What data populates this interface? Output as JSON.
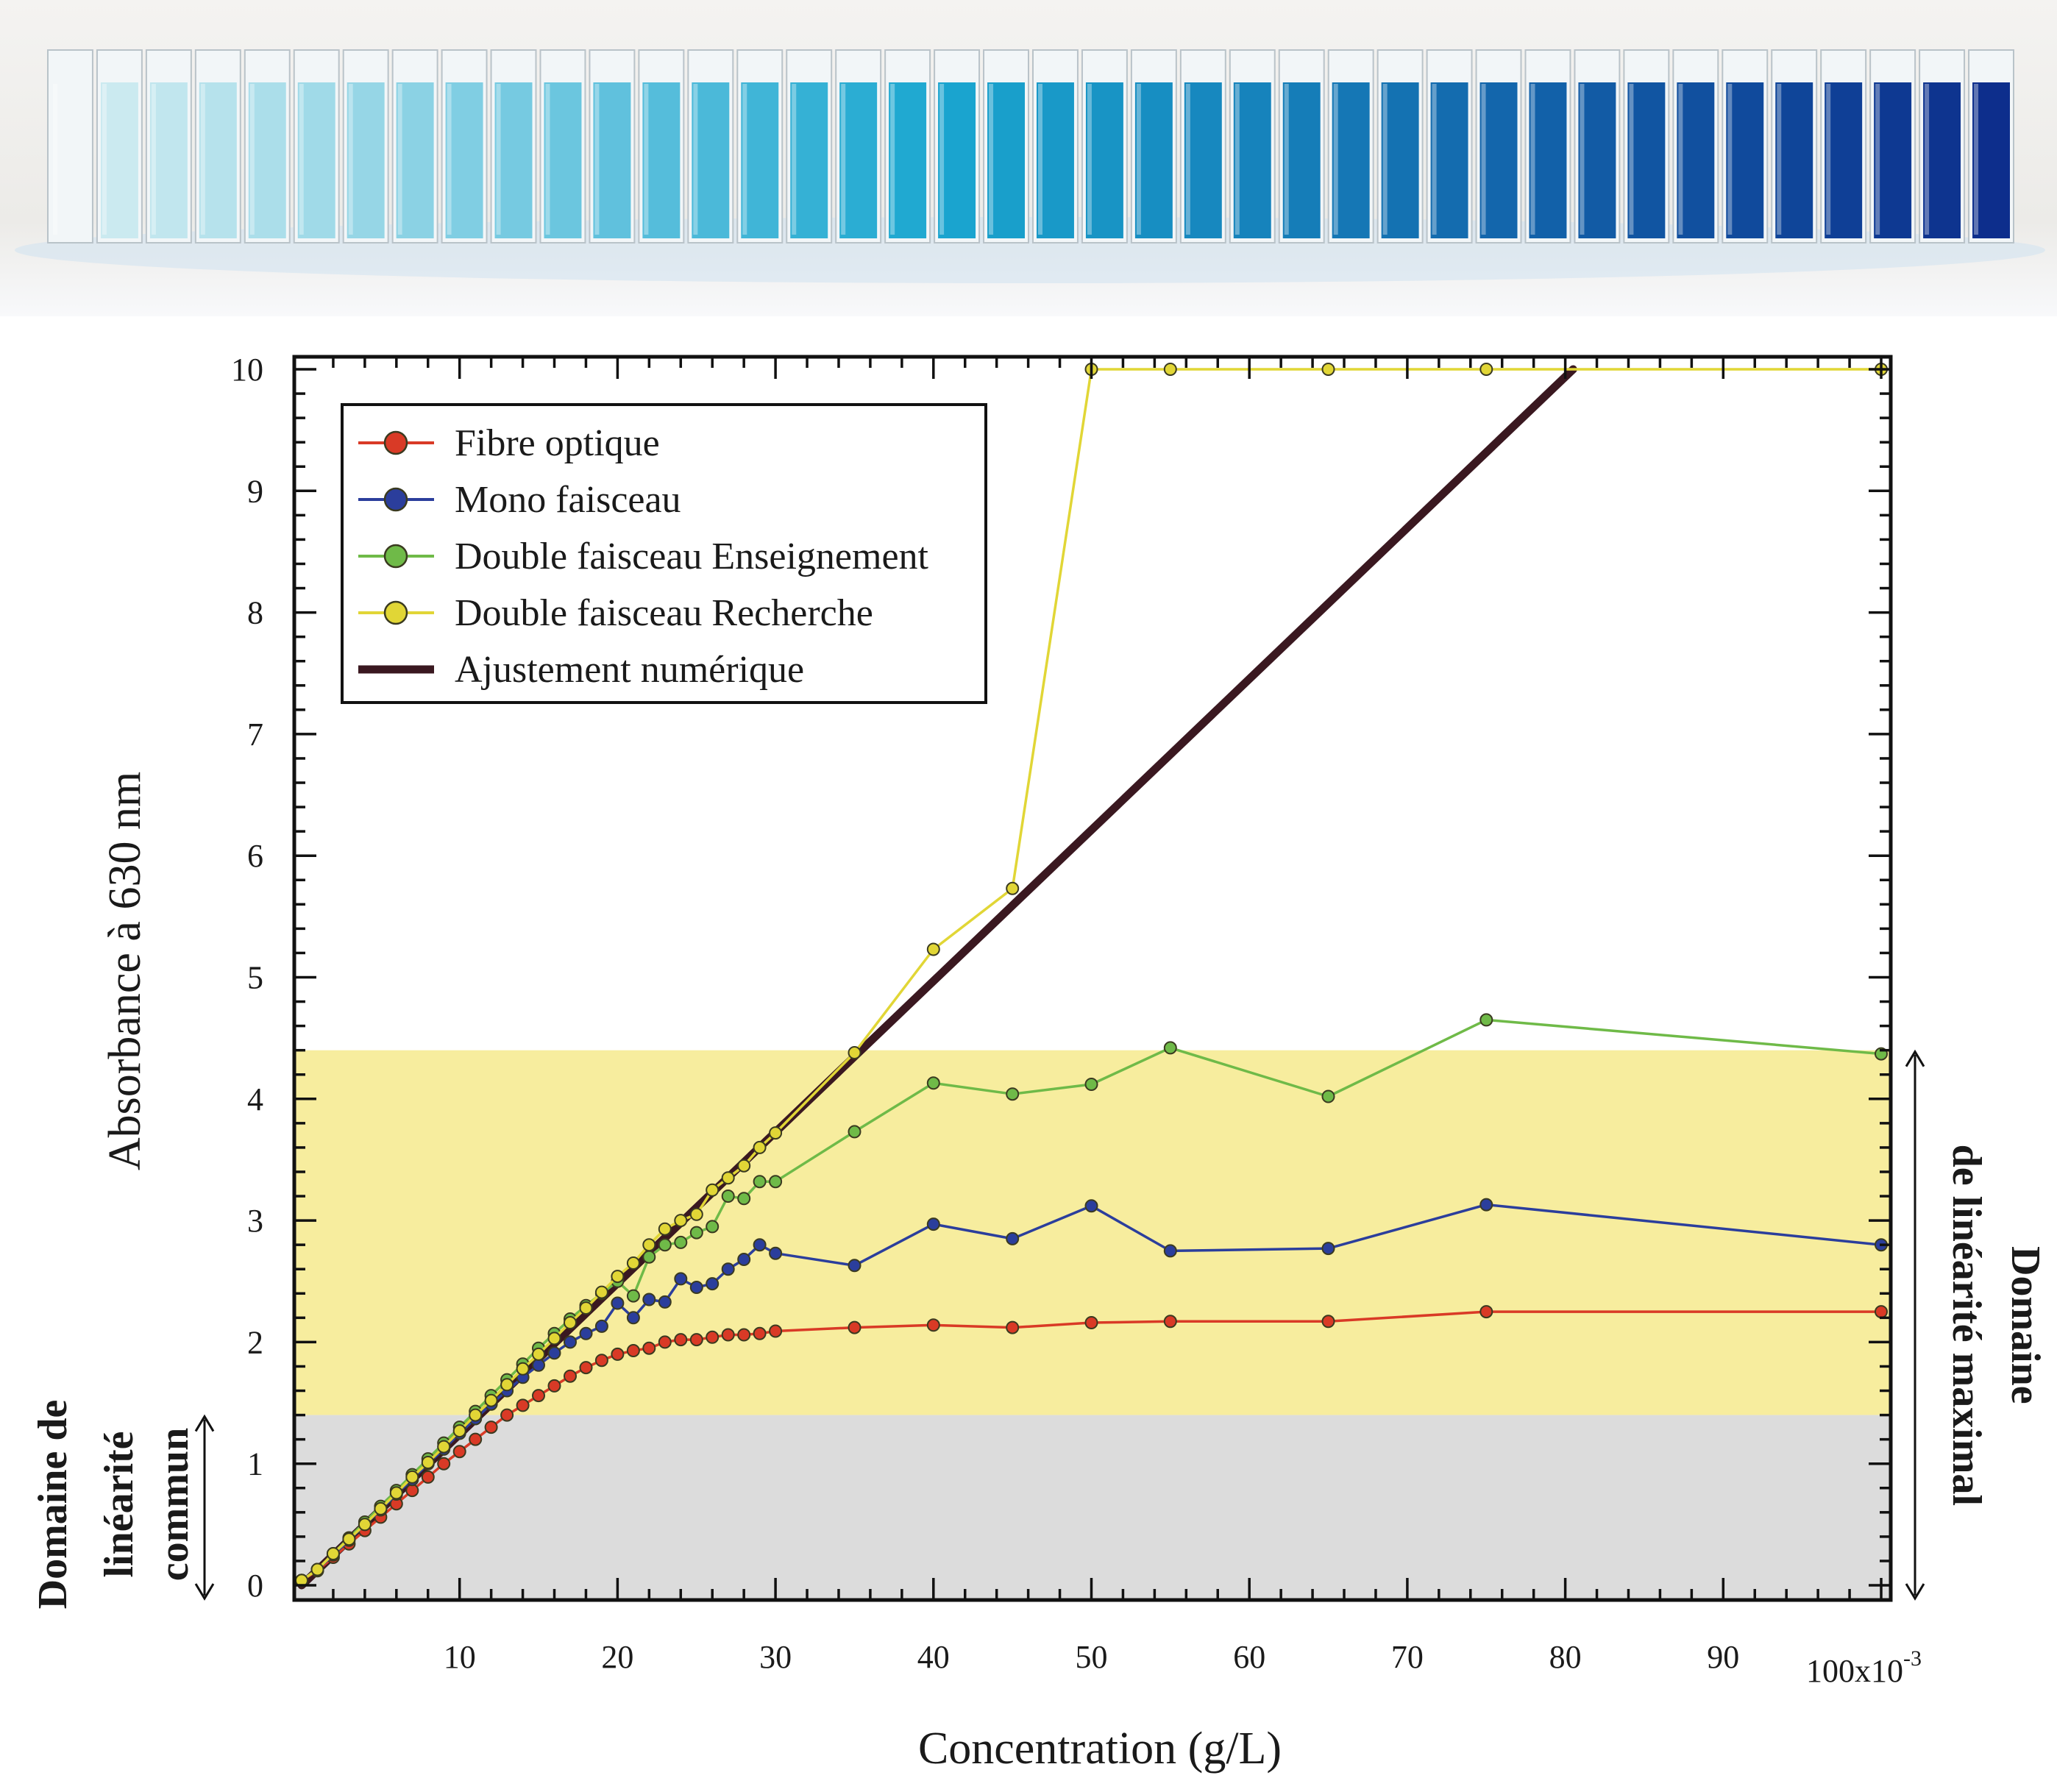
{
  "photo": {
    "cuvette_count": 40,
    "colors": {
      "light": "#d6eef2",
      "mid": "#1aa7d0",
      "dark": "#0d2e8c"
    }
  },
  "chart_data": {
    "type": "line",
    "title": "",
    "xlabel": "Concentration (g/L)",
    "ylabel": "Absorbance à 630 nm",
    "x_exponent_label": "100x10",
    "x_exponent_sup": "-3",
    "xlim": [
      0,
      100
    ],
    "ylim": [
      0,
      10
    ],
    "x_ticks": [
      10,
      20,
      30,
      40,
      50,
      60,
      70,
      80,
      90
    ],
    "y_ticks": [
      0,
      1,
      2,
      3,
      4,
      5,
      6,
      7,
      8,
      9,
      10
    ],
    "grid": false,
    "legend_position": "top-left",
    "regions": [
      {
        "name": "Domaine de linéarité maximal",
        "y_range": [
          1.4,
          4.4
        ],
        "color": "#f7ed9e"
      },
      {
        "name": "Domaine de linéarité commun",
        "y_range": [
          0,
          1.4
        ],
        "color": "#dcdcdc"
      }
    ],
    "side_labels": {
      "left": [
        "Domaine de",
        "linéarité",
        "commun"
      ],
      "right": [
        "Domaine",
        "de linéarité maximal"
      ]
    },
    "series": [
      {
        "name": "Fibre optique",
        "color": "#d93a26",
        "marker": true,
        "x": [
          0,
          1,
          2,
          3,
          4,
          5,
          6,
          7,
          8,
          9,
          10,
          11,
          12,
          13,
          14,
          15,
          16,
          17,
          18,
          19,
          20,
          21,
          22,
          23,
          24,
          25,
          26,
          27,
          28,
          29,
          30,
          35,
          40,
          45,
          50,
          55,
          65,
          75,
          100
        ],
        "y": [
          0.04,
          0.12,
          0.23,
          0.34,
          0.45,
          0.56,
          0.67,
          0.78,
          0.89,
          1.0,
          1.1,
          1.2,
          1.3,
          1.4,
          1.48,
          1.56,
          1.64,
          1.72,
          1.79,
          1.85,
          1.9,
          1.93,
          1.95,
          2.0,
          2.02,
          2.02,
          2.04,
          2.06,
          2.06,
          2.07,
          2.09,
          2.12,
          2.14,
          2.12,
          2.16,
          2.17,
          2.17,
          2.25,
          2.25
        ]
      },
      {
        "name": "Mono faisceau",
        "color": "#2b3e9c",
        "marker": true,
        "x": [
          0,
          1,
          2,
          3,
          4,
          5,
          6,
          7,
          8,
          9,
          10,
          11,
          12,
          13,
          14,
          15,
          16,
          17,
          18,
          19,
          20,
          21,
          22,
          23,
          24,
          25,
          26,
          27,
          28,
          29,
          30,
          35,
          40,
          45,
          50,
          55,
          65,
          75,
          100
        ],
        "y": [
          0.04,
          0.13,
          0.25,
          0.37,
          0.5,
          0.62,
          0.75,
          0.87,
          1.0,
          1.12,
          1.25,
          1.37,
          1.49,
          1.6,
          1.71,
          1.81,
          1.91,
          2.0,
          2.07,
          2.13,
          2.32,
          2.2,
          2.35,
          2.33,
          2.52,
          2.45,
          2.48,
          2.6,
          2.68,
          2.8,
          2.73,
          2.63,
          2.97,
          2.85,
          3.12,
          2.75,
          2.77,
          3.13,
          2.8
        ]
      },
      {
        "name": "Double faisceau Enseignement",
        "color": "#6fba48",
        "marker": true,
        "x": [
          0,
          1,
          2,
          3,
          4,
          5,
          6,
          7,
          8,
          9,
          10,
          11,
          12,
          13,
          14,
          15,
          16,
          17,
          18,
          19,
          20,
          21,
          22,
          23,
          24,
          25,
          26,
          27,
          28,
          29,
          30,
          35,
          40,
          45,
          50,
          55,
          65,
          75,
          100
        ],
        "y": [
          0.04,
          0.13,
          0.26,
          0.39,
          0.52,
          0.65,
          0.78,
          0.91,
          1.04,
          1.17,
          1.3,
          1.43,
          1.56,
          1.69,
          1.82,
          1.95,
          2.07,
          2.19,
          2.3,
          2.4,
          2.5,
          2.38,
          2.7,
          2.8,
          2.82,
          2.9,
          2.95,
          3.2,
          3.18,
          3.32,
          3.32,
          3.73,
          4.13,
          4.04,
          4.12,
          4.42,
          4.02,
          4.65,
          4.37
        ]
      },
      {
        "name": "Double faisceau Recherche",
        "color": "#e1d636",
        "marker": true,
        "x": [
          0,
          1,
          2,
          3,
          4,
          5,
          6,
          7,
          8,
          9,
          10,
          11,
          12,
          13,
          14,
          15,
          16,
          17,
          18,
          19,
          20,
          21,
          22,
          23,
          24,
          25,
          26,
          27,
          28,
          29,
          30,
          35,
          40,
          45,
          50,
          55,
          65,
          75,
          100
        ],
        "y": [
          0.04,
          0.13,
          0.26,
          0.38,
          0.5,
          0.63,
          0.76,
          0.89,
          1.01,
          1.14,
          1.27,
          1.4,
          1.52,
          1.65,
          1.78,
          1.9,
          2.03,
          2.16,
          2.28,
          2.41,
          2.54,
          2.65,
          2.8,
          2.93,
          3.0,
          3.05,
          3.25,
          3.35,
          3.45,
          3.6,
          3.72,
          4.38,
          5.23,
          5.73,
          10,
          10,
          10,
          10,
          10
        ]
      },
      {
        "name": "Ajustement numérique",
        "color": "#3a1820",
        "marker": false,
        "x": [
          0,
          80.5
        ],
        "y": [
          0,
          10
        ]
      }
    ]
  }
}
